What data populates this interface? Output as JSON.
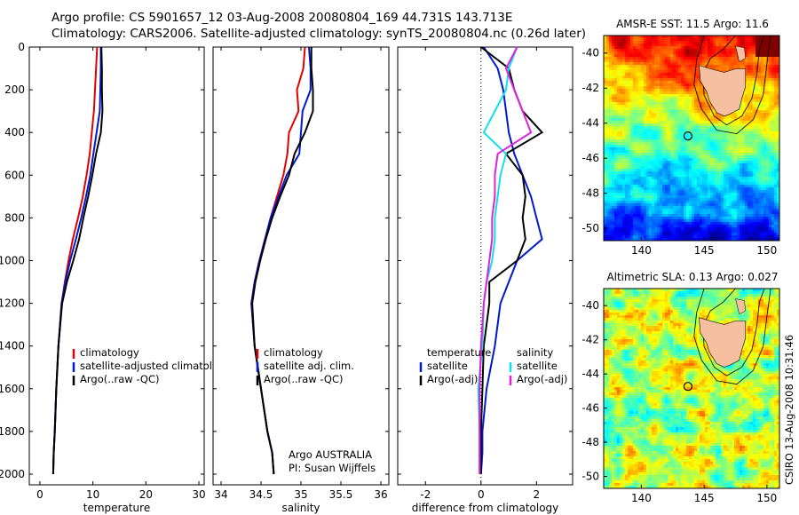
{
  "header": {
    "line1": "Argo profile: CS 5901657_12 03-Aug-2008 20080804_169 44.731S 143.713E",
    "line2": "Climatology: CARS2006. Satellite-adjusted climatology: synTS_20080804.nc (0.26d later)"
  },
  "credit": "CSIRO 13-Aug-2008 10:31:46",
  "colors": {
    "red": "#e00000",
    "blue": "#0018d0",
    "black": "#000000",
    "cyan": "#10e0e8",
    "magenta": "#e020e0"
  },
  "chart_data": [
    {
      "type": "line",
      "xlabel": "temperature",
      "xlim": [
        -2,
        31
      ],
      "ylim": [
        0,
        2050
      ],
      "xticks": [
        0,
        10,
        20,
        30
      ],
      "yticks": [
        0,
        200,
        400,
        600,
        800,
        1000,
        1200,
        1400,
        1600,
        1800,
        2000
      ],
      "legend": [
        "climatology",
        "satellite-adjusted climatology",
        "Argo(..raw -QC)"
      ],
      "series": [
        {
          "name": "climatology",
          "color": "red",
          "x": [
            10.8,
            10.6,
            10.4,
            10.2,
            9.8,
            9.4,
            8.8,
            8.1,
            7.2,
            6.2,
            5.4,
            4.7,
            4.1,
            3.5,
            3.1,
            2.8,
            2.6,
            2.5
          ],
          "y": [
            0,
            100,
            200,
            300,
            400,
            500,
            600,
            700,
            800,
            900,
            1000,
            1100,
            1200,
            1400,
            1600,
            1800,
            1900,
            2000
          ]
        },
        {
          "name": "satellite-adjusted climatology",
          "color": "blue",
          "x": [
            11.5,
            11.5,
            11.4,
            11.3,
            10.7,
            10.1,
            9.5,
            8.7,
            7.8,
            6.8,
            5.7,
            4.8,
            4.1,
            3.5,
            3.1,
            2.8,
            2.6,
            2.5
          ],
          "y": [
            0,
            100,
            200,
            300,
            400,
            500,
            600,
            700,
            800,
            900,
            1000,
            1100,
            1200,
            1400,
            1600,
            1800,
            1900,
            2000
          ]
        },
        {
          "name": "Argo(..raw -QC)",
          "color": "black",
          "x": [
            11.6,
            11.7,
            11.7,
            11.8,
            11.5,
            10.6,
            9.9,
            9.1,
            8.2,
            7.4,
            6.3,
            5.1,
            4.2,
            3.5,
            3.1,
            2.8,
            2.6,
            2.5
          ],
          "y": [
            0,
            100,
            200,
            300,
            400,
            500,
            600,
            700,
            800,
            900,
            1000,
            1100,
            1200,
            1400,
            1600,
            1800,
            1900,
            2000
          ]
        }
      ]
    },
    {
      "type": "line",
      "xlabel": "salinity",
      "xlim": [
        33.9,
        36.1
      ],
      "ylim": [
        0,
        2050
      ],
      "xticks": [
        34,
        34.5,
        35,
        35.5,
        36
      ],
      "yticks": [
        0,
        200,
        400,
        600,
        800,
        1000,
        1200,
        1400,
        1600,
        1800,
        2000
      ],
      "legend": [
        "climatology",
        "satellite adj. clim.",
        "Argo(..raw -QC)"
      ],
      "annotation": [
        "Argo AUSTRALIA",
        "PI: Susan Wijffels"
      ],
      "series": [
        {
          "name": "climatology",
          "color": "red",
          "x": [
            35.05,
            35.03,
            34.95,
            34.97,
            34.85,
            34.83,
            34.78,
            34.7,
            34.62,
            34.55,
            34.48,
            34.42,
            34.38,
            34.42,
            34.5,
            34.58,
            34.64,
            34.66
          ],
          "y": [
            0,
            100,
            200,
            300,
            400,
            500,
            600,
            700,
            800,
            900,
            1000,
            1100,
            1200,
            1400,
            1600,
            1800,
            1900,
            2000
          ]
        },
        {
          "name": "satellite adj. clim.",
          "color": "blue",
          "x": [
            35.1,
            35.12,
            35.12,
            35.02,
            35.0,
            34.98,
            34.82,
            34.72,
            34.62,
            34.55,
            34.48,
            34.42,
            34.38,
            34.42,
            34.5,
            34.58,
            34.64,
            34.66
          ],
          "y": [
            0,
            100,
            200,
            300,
            400,
            500,
            600,
            700,
            800,
            900,
            1000,
            1100,
            1200,
            1400,
            1600,
            1800,
            1900,
            2000
          ]
        },
        {
          "name": "Argo(..raw -QC)",
          "color": "black",
          "x": [
            35.13,
            35.13,
            35.15,
            35.15,
            35.05,
            34.92,
            34.85,
            34.74,
            34.64,
            34.56,
            34.49,
            34.43,
            34.39,
            34.42,
            34.5,
            34.58,
            34.64,
            34.66
          ],
          "y": [
            0,
            100,
            200,
            300,
            400,
            500,
            600,
            700,
            800,
            900,
            1000,
            1100,
            1200,
            1400,
            1600,
            1800,
            1900,
            2000
          ]
        }
      ]
    },
    {
      "type": "line",
      "xlabel": "difference from climatology",
      "xlim": [
        -3,
        3.3
      ],
      "ylim": [
        0,
        2050
      ],
      "xticks": [
        -2,
        0,
        2
      ],
      "yticks": [
        0,
        200,
        400,
        600,
        800,
        1000,
        1200,
        1400,
        1600,
        1800,
        2000
      ],
      "legend_left": [
        "temperature",
        "satellite",
        "Argo(-adj)"
      ],
      "legend_right": [
        "salinity",
        "satellite",
        "Argo(-adj)"
      ],
      "series": [
        {
          "name": "satellite",
          "color": "blue",
          "x": [
            0.1,
            0.6,
            0.8,
            0.9,
            1.0,
            1.2,
            1.5,
            1.8,
            2.0,
            2.2,
            1.3,
            1.0,
            0.7,
            0.5,
            0.2,
            0.05,
            0.05,
            0.0
          ],
          "y": [
            0,
            100,
            200,
            300,
            400,
            500,
            600,
            700,
            800,
            900,
            1000,
            1100,
            1200,
            1400,
            1600,
            1800,
            1900,
            2000
          ]
        },
        {
          "name": "Argo(-adj)",
          "color": "black",
          "x": [
            0.0,
            1.0,
            1.2,
            1.5,
            2.2,
            0.9,
            1.5,
            1.6,
            1.5,
            1.6,
            1.3,
            0.3,
            0.3,
            0.1,
            0.05,
            0.0,
            0.0,
            0.0
          ],
          "y": [
            0,
            100,
            200,
            300,
            400,
            500,
            600,
            700,
            800,
            900,
            1000,
            1100,
            1200,
            1400,
            1600,
            1800,
            1900,
            2000
          ]
        },
        {
          "name": "satellite",
          "color": "cyan",
          "x": [
            1.3,
            1.0,
            0.9,
            0.5,
            0.1,
            0.9,
            0.7,
            0.6,
            0.5,
            0.5,
            0.4,
            0.2,
            0.1,
            0.05,
            -0.1,
            -0.05,
            -0.05,
            -0.05
          ],
          "y": [
            0,
            100,
            200,
            300,
            400,
            500,
            600,
            700,
            800,
            900,
            1000,
            1100,
            1200,
            1400,
            1600,
            1800,
            1900,
            2000
          ]
        },
        {
          "name": "Argo(-adj)",
          "color": "magenta",
          "x": [
            1.3,
            0.9,
            1.2,
            1.5,
            1.8,
            0.6,
            0.5,
            0.5,
            0.4,
            0.4,
            0.3,
            0.2,
            0.1,
            0.0,
            -0.05,
            -0.05,
            -0.05,
            -0.05
          ],
          "y": [
            0,
            100,
            200,
            300,
            400,
            500,
            600,
            700,
            800,
            900,
            1000,
            1100,
            1200,
            1400,
            1600,
            1800,
            1900,
            2000
          ]
        }
      ]
    },
    {
      "type": "heatmap",
      "title": "AMSR-E SST: 11.5  Argo: 11.6",
      "xlim": [
        137,
        151
      ],
      "ylim": [
        -50.7,
        -39
      ],
      "xticks": [
        140,
        145,
        150
      ],
      "yticks": [
        -40,
        -42,
        -44,
        -46,
        -48,
        -50
      ],
      "marker": {
        "x": 143.713,
        "y": -44.731
      }
    },
    {
      "type": "heatmap",
      "title": "Altimetric SLA: 0.13  Argo: 0.027",
      "xlim": [
        137,
        151
      ],
      "ylim": [
        -50.7,
        -39
      ],
      "xticks": [
        140,
        145,
        150
      ],
      "yticks": [
        -40,
        -42,
        -44,
        -46,
        -48,
        -50
      ],
      "marker": {
        "x": 143.713,
        "y": -44.731
      }
    }
  ]
}
